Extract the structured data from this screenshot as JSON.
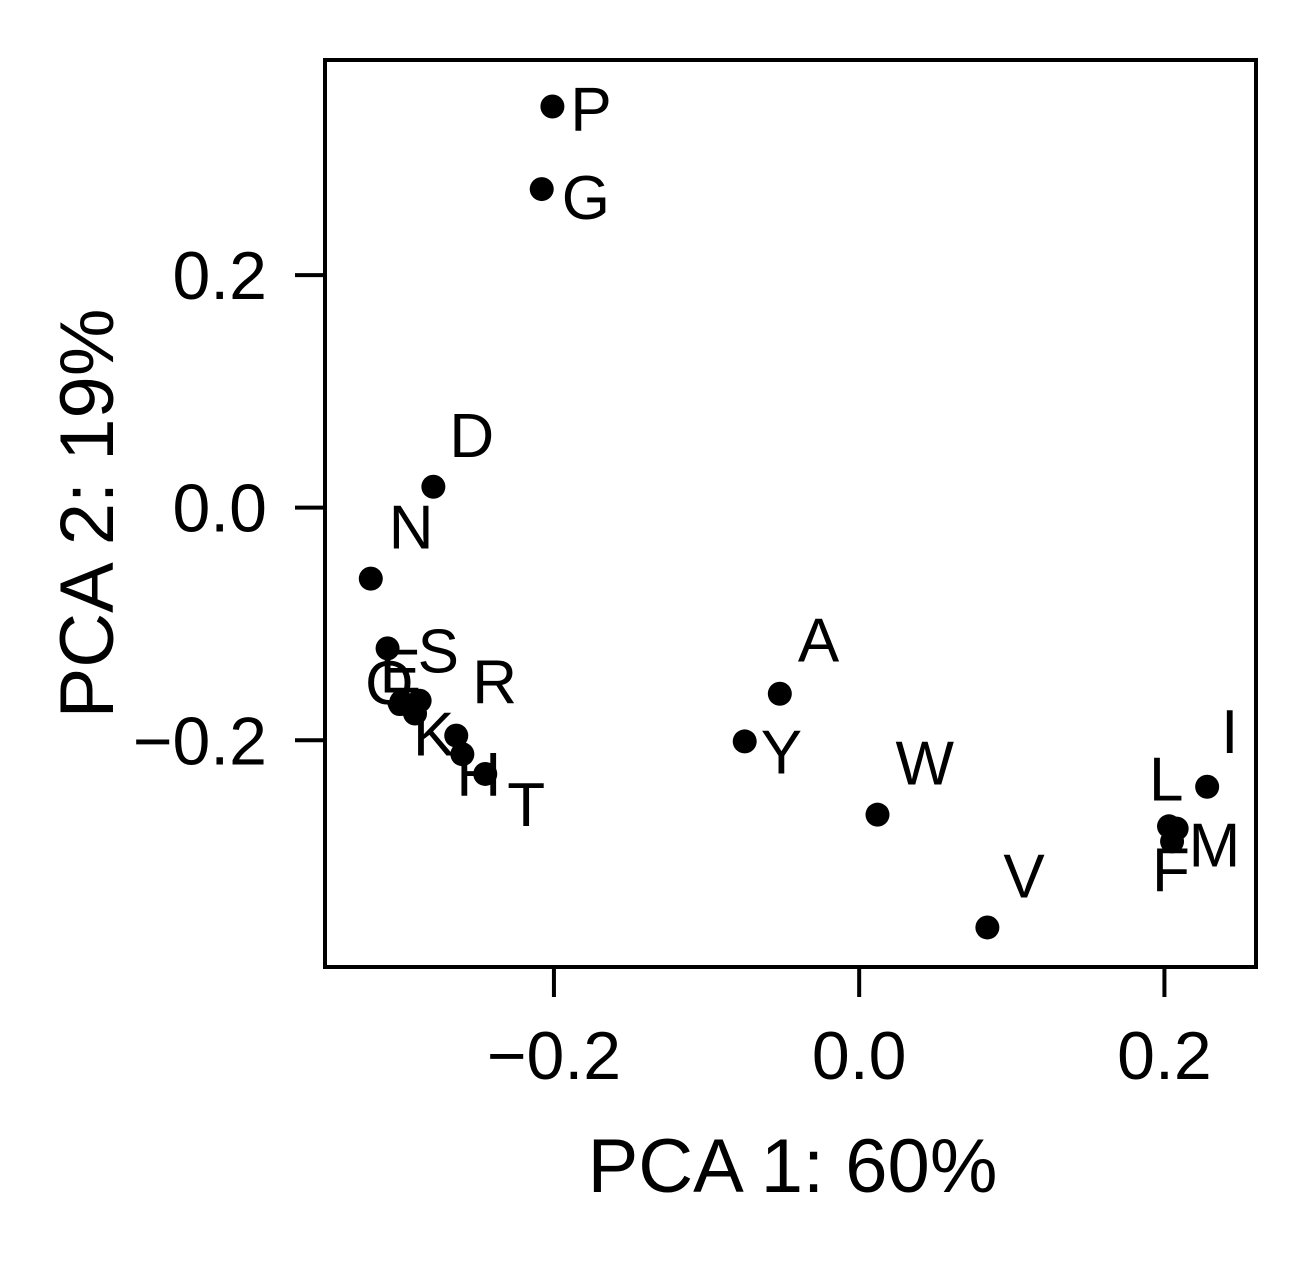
{
  "chart_data": {
    "type": "scatter",
    "title": "",
    "xlabel": "PCA 1: 60%",
    "ylabel": "PCA 2: 19%",
    "xlim": [
      -0.35,
      0.26
    ],
    "ylim": [
      -0.395,
      0.385
    ],
    "xticks": [
      -0.2,
      0.0,
      0.2
    ],
    "xtick_labels": [
      "−0.2",
      "0.0",
      "0.2"
    ],
    "yticks": [
      -0.2,
      0.0,
      0.2
    ],
    "ytick_labels": [
      "−0.2",
      "0.0",
      "0.2"
    ],
    "grid": false,
    "legend": "none",
    "marker_color": "#000000",
    "points": [
      {
        "label": "P",
        "x": -0.201,
        "y": 0.345
      },
      {
        "label": "G",
        "x": -0.208,
        "y": 0.274
      },
      {
        "label": "D",
        "x": -0.279,
        "y": 0.018
      },
      {
        "label": "N",
        "x": -0.32,
        "y": -0.061
      },
      {
        "label": "E",
        "x": -0.309,
        "y": -0.121
      },
      {
        "label": "Q",
        "x": -0.3,
        "y": -0.167
      },
      {
        "label": "S",
        "x": -0.288,
        "y": -0.166
      },
      {
        "label": "K",
        "x": -0.291,
        "y": -0.177
      },
      {
        "label": "R",
        "x": -0.264,
        "y": -0.196
      },
      {
        "label": "H",
        "x": -0.26,
        "y": -0.212
      },
      {
        "label": "T",
        "x": -0.245,
        "y": -0.229
      },
      {
        "label": "A",
        "x": -0.052,
        "y": -0.16
      },
      {
        "label": "Y",
        "x": -0.075,
        "y": -0.201
      },
      {
        "label": "W",
        "x": 0.012,
        "y": -0.264
      },
      {
        "label": "V",
        "x": 0.084,
        "y": -0.361
      },
      {
        "label": "I",
        "x": 0.228,
        "y": -0.24
      },
      {
        "label": "L",
        "x": 0.203,
        "y": -0.274
      },
      {
        "label": "M",
        "x": 0.208,
        "y": -0.276
      },
      {
        "label": "F",
        "x": 0.205,
        "y": -0.287
      }
    ]
  }
}
